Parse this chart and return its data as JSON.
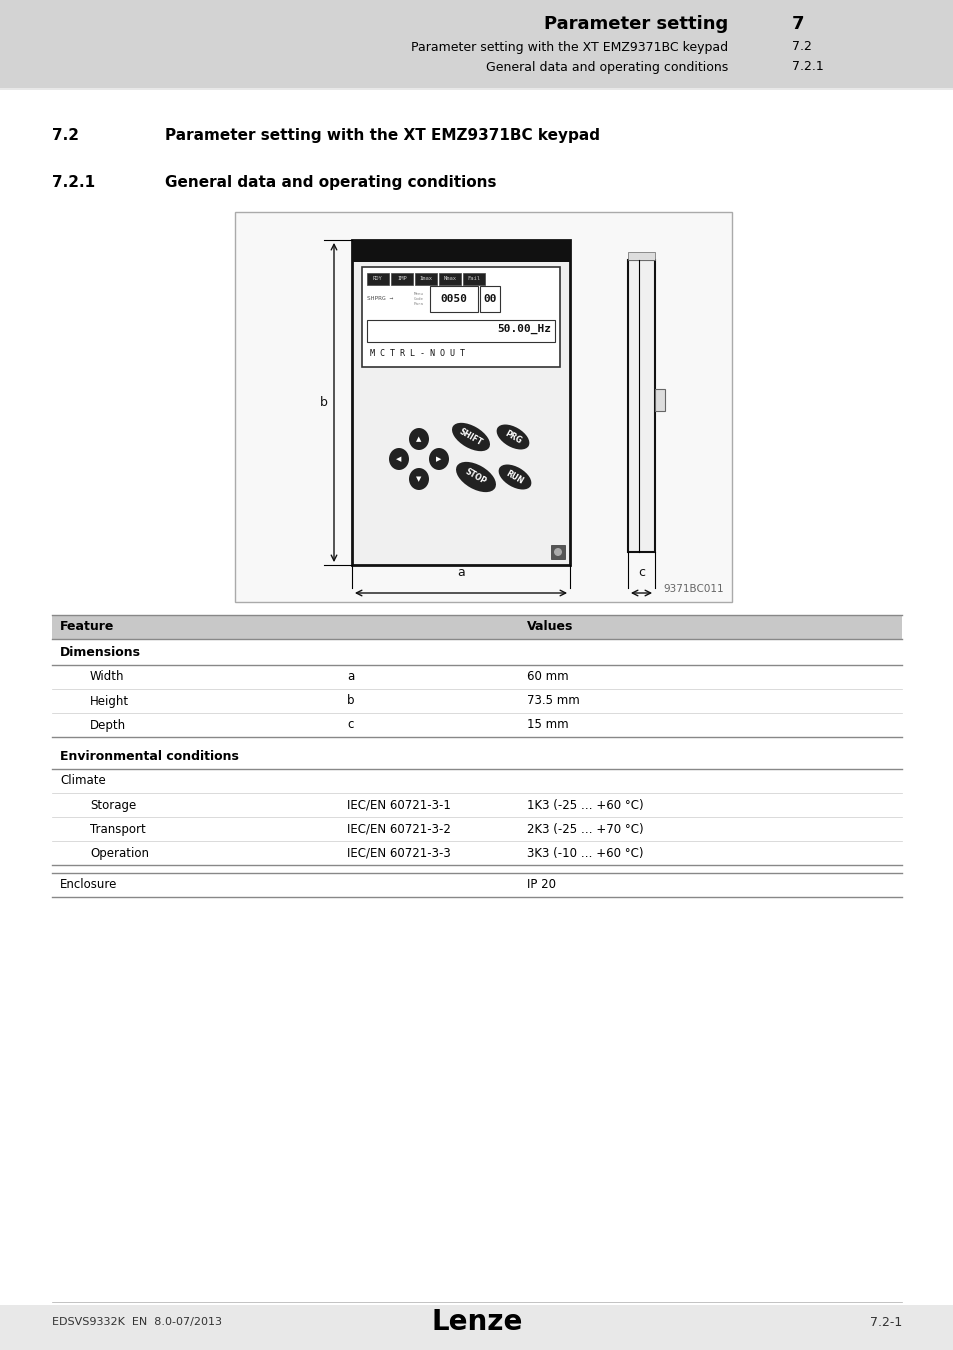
{
  "page_bg": "#e8e8e8",
  "content_bg": "#ffffff",
  "header_bg": "#d3d3d3",
  "header_title": "Parameter setting",
  "header_num": "7",
  "header_sub1": "Parameter setting with the XT EMZ9371BC keypad",
  "header_sub1_num": "7.2",
  "header_sub2": "General data and operating conditions",
  "header_sub2_num": "7.2.1",
  "section_72_num": "7.2",
  "section_72_title": "Parameter setting with the XT EMZ9371BC keypad",
  "section_721_num": "7.2.1",
  "section_721_title": "General data and operating conditions",
  "image_label": "9371BC011",
  "table_header_bg": "#c8c8c8",
  "table_col_header": [
    "Feature",
    "Values"
  ],
  "table_sections": [
    {
      "section_label": "Dimensions",
      "rows": [
        {
          "feature": "Width",
          "col2": "a",
          "value": "60 mm"
        },
        {
          "feature": "Height",
          "col2": "b",
          "value": "73.5 mm"
        },
        {
          "feature": "Depth",
          "col2": "c",
          "value": "15 mm"
        }
      ]
    },
    {
      "section_label": "Environmental conditions",
      "subsection": "Climate",
      "rows": [
        {
          "feature": "Storage",
          "col2": "IEC/EN 60721-3-1",
          "value": "1K3 (-25 … +60 °C)"
        },
        {
          "feature": "Transport",
          "col2": "IEC/EN 60721-3-2",
          "value": "2K3 (-25 … +70 °C)"
        },
        {
          "feature": "Operation",
          "col2": "IEC/EN 60721-3-3",
          "value": "3K3 (-10 … +60 °C)"
        }
      ]
    },
    {
      "section_label": "Enclosure",
      "rows": [
        {
          "feature": "",
          "col2": "",
          "value": "IP 20"
        }
      ]
    }
  ],
  "footer_left": "EDSVS9332K  EN  8.0-07/2013",
  "footer_center": "Lenze",
  "footer_right": "7.2-1"
}
